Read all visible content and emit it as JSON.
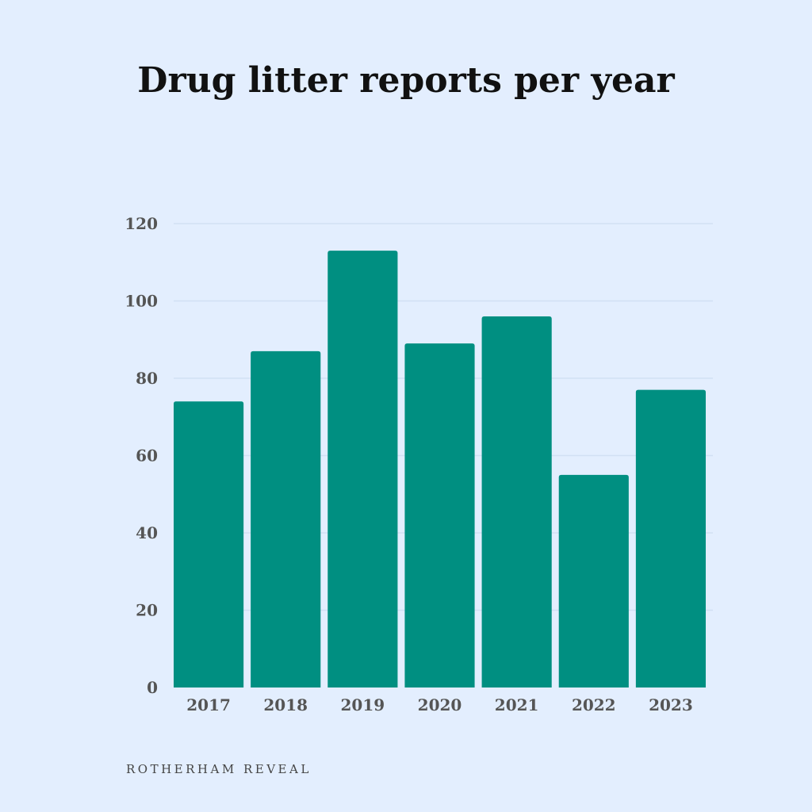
{
  "chart_data": {
    "type": "bar",
    "title": "Drug litter reports per year",
    "categories": [
      "2017",
      "2018",
      "2019",
      "2020",
      "2021",
      "2022",
      "2023"
    ],
    "values": [
      74,
      87,
      113,
      89,
      96,
      55,
      77
    ],
    "xlabel": "",
    "ylabel": "",
    "ylim": [
      0,
      120
    ],
    "yticks": [
      0,
      20,
      40,
      60,
      80,
      100,
      120
    ],
    "grid": true,
    "legend": "none",
    "bar_color": "#008f81",
    "grid_color": "#d2e0f3",
    "background_color": "#e3eefe"
  },
  "footer": {
    "credit": "ROTHERHAM REVEAL"
  }
}
